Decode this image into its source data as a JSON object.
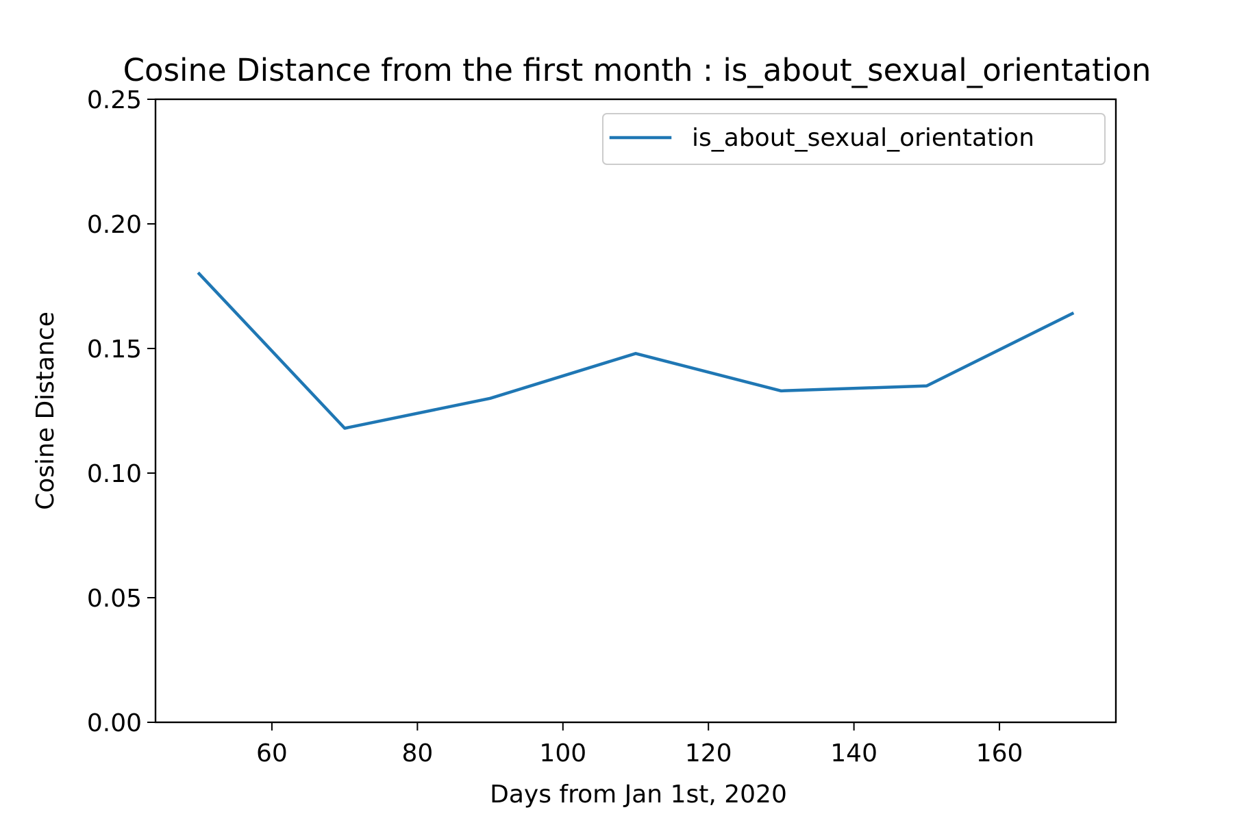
{
  "chart_data": {
    "type": "line",
    "title": "Cosine Distance from the first month : is_about_sexual_orientation",
    "xlabel": "Days from Jan 1st, 2020",
    "ylabel": "Cosine Distance",
    "xlim": [
      44,
      176
    ],
    "ylim": [
      0.0,
      0.25
    ],
    "xticks": [
      60,
      80,
      100,
      120,
      140,
      160
    ],
    "xtick_labels": [
      "60",
      "80",
      "100",
      "120",
      "140",
      "160"
    ],
    "yticks": [
      0.0,
      0.05,
      0.1,
      0.15,
      0.2,
      0.25
    ],
    "ytick_labels": [
      "0.00",
      "0.05",
      "0.10",
      "0.15",
      "0.20",
      "0.25"
    ],
    "grid": false,
    "legend_position": "top-right",
    "series": [
      {
        "name": "is_about_sexual_orientation",
        "color": "#1f77b4",
        "x": [
          50,
          70,
          90,
          110,
          130,
          150,
          170
        ],
        "y": [
          0.18,
          0.118,
          0.13,
          0.148,
          0.133,
          0.135,
          0.164
        ]
      }
    ]
  }
}
